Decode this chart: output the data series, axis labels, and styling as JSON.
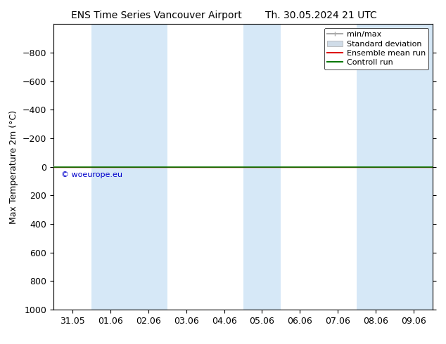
{
  "title_left": "ENS Time Series Vancouver Airport",
  "title_right": "Th. 30.05.2024 21 UTC",
  "ylabel": "Max Temperature 2m (°C)",
  "ylim_bottom": 1000,
  "ylim_top": -1000,
  "yticks": [
    -800,
    -600,
    -400,
    -200,
    0,
    200,
    400,
    600,
    800,
    1000
  ],
  "xtick_labels": [
    "31.05",
    "01.06",
    "02.06",
    "03.06",
    "04.06",
    "05.06",
    "06.06",
    "07.06",
    "08.06",
    "09.06"
  ],
  "xtick_positions": [
    0,
    1,
    2,
    3,
    4,
    5,
    6,
    7,
    8,
    9
  ],
  "xlim": [
    -0.5,
    9.5
  ],
  "shaded_bands": [
    [
      0.5,
      1.5
    ],
    [
      1.5,
      2.5
    ],
    [
      4.5,
      5.5
    ],
    [
      7.5,
      8.5
    ],
    [
      8.5,
      10.0
    ]
  ],
  "shaded_color": "#d6e8f7",
  "control_run_y": 0,
  "control_run_color": "#007700",
  "ensemble_mean_color": "#dd0000",
  "watermark": "© woeurope.eu",
  "watermark_color": "#0000cc",
  "legend_entries": [
    "min/max",
    "Standard deviation",
    "Ensemble mean run",
    "Controll run"
  ],
  "legend_line_colors": [
    "#aaaaaa",
    "#bbccdd",
    "#dd0000",
    "#007700"
  ],
  "background_color": "#ffffff",
  "plot_bg_color": "#ffffff",
  "title_fontsize": 10,
  "ylabel_fontsize": 9,
  "tick_fontsize": 9,
  "legend_fontsize": 8
}
